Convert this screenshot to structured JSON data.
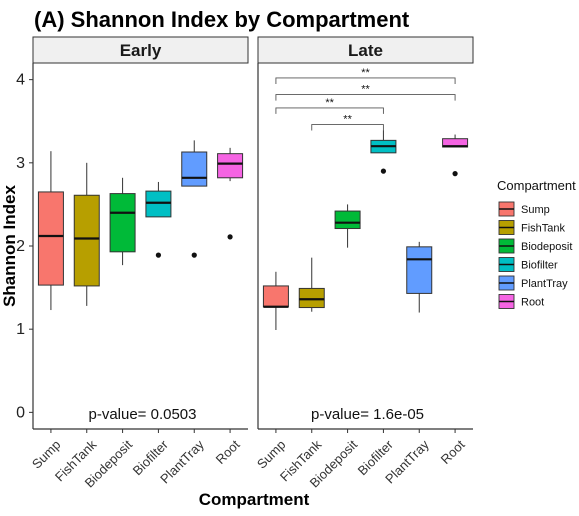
{
  "chart_data": {
    "type": "boxplot",
    "title": "(A) Shannon Index by Compartment",
    "xlabel": "Compartment",
    "ylabel": "Shannon Index",
    "ylim": [
      -0.2,
      4.2
    ],
    "yticks": [
      0,
      1,
      2,
      3,
      4
    ],
    "categories": [
      "Sump",
      "FishTank",
      "Biodeposit",
      "Biofilter",
      "PlantTray",
      "Root"
    ],
    "legend": {
      "title": "Compartment",
      "position": "right",
      "entries": [
        "Sump",
        "FishTank",
        "Biodeposit",
        "Biofilter",
        "PlantTray",
        "Root"
      ]
    },
    "colors": {
      "Sump": "#F8766D",
      "FishTank": "#B79F00",
      "Biodeposit": "#00BA38",
      "Biofilter": "#00BFC4",
      "PlantTray": "#619CFF",
      "Root": "#F564E3"
    },
    "panels": [
      {
        "label": "Early",
        "pvalue": "p-value= 0.0503",
        "boxes": [
          {
            "group": "Sump",
            "min": 1.23,
            "q1": 1.53,
            "median": 2.12,
            "q3": 2.65,
            "max": 3.14,
            "outliers": []
          },
          {
            "group": "FishTank",
            "min": 1.28,
            "q1": 1.52,
            "median": 2.09,
            "q3": 2.61,
            "max": 3.0,
            "outliers": []
          },
          {
            "group": "Biodeposit",
            "min": 1.77,
            "q1": 1.93,
            "median": 2.4,
            "q3": 2.63,
            "max": 2.82,
            "outliers": []
          },
          {
            "group": "Biofilter",
            "min": 2.35,
            "q1": 2.35,
            "median": 2.52,
            "q3": 2.66,
            "max": 2.77,
            "outliers": [
              1.89
            ]
          },
          {
            "group": "PlantTray",
            "min": 2.72,
            "q1": 2.72,
            "median": 2.82,
            "q3": 3.13,
            "max": 3.27,
            "outliers": [
              1.89
            ]
          },
          {
            "group": "Root",
            "min": 2.78,
            "q1": 2.82,
            "median": 2.99,
            "q3": 3.11,
            "max": 3.18,
            "outliers": [
              2.11
            ]
          }
        ],
        "significance": []
      },
      {
        "label": "Late",
        "pvalue": "p-value= 1.6e-05",
        "boxes": [
          {
            "group": "Sump",
            "min": 0.99,
            "q1": 1.27,
            "median": 1.27,
            "q3": 1.52,
            "max": 1.69,
            "outliers": []
          },
          {
            "group": "FishTank",
            "min": 1.21,
            "q1": 1.26,
            "median": 1.36,
            "q3": 1.49,
            "max": 1.86,
            "outliers": []
          },
          {
            "group": "Biodeposit",
            "min": 1.98,
            "q1": 2.21,
            "median": 2.28,
            "q3": 2.42,
            "max": 2.5,
            "outliers": []
          },
          {
            "group": "Biofilter",
            "min": 3.12,
            "q1": 3.12,
            "median": 3.2,
            "q3": 3.27,
            "max": 3.39,
            "outliers": [
              2.9
            ]
          },
          {
            "group": "PlantTray",
            "min": 1.2,
            "q1": 1.43,
            "median": 1.84,
            "q3": 1.99,
            "max": 2.05,
            "outliers": []
          },
          {
            "group": "Root",
            "min": 3.19,
            "q1": 3.19,
            "median": 3.2,
            "q3": 3.29,
            "max": 3.34,
            "outliers": [
              2.87
            ]
          }
        ],
        "significance": [
          {
            "from": "Sump",
            "to": "Root",
            "y": 4.02,
            "label": "**"
          },
          {
            "from": "Sump",
            "to": "Root",
            "y": 3.82,
            "label": "**"
          },
          {
            "from": "Sump",
            "to": "Biofilter",
            "y": 3.66,
            "label": "**"
          },
          {
            "from": "FishTank",
            "to": "Biofilter",
            "y": 3.46,
            "label": "**"
          }
        ]
      }
    ]
  }
}
